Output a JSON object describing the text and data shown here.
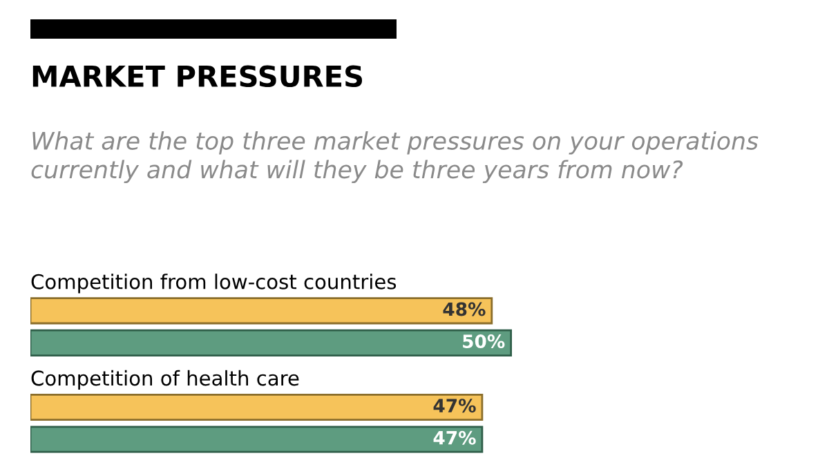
{
  "chart_data": {
    "type": "bar",
    "orientation": "horizontal",
    "title": "MARKET PRESSURES",
    "subtitle": "What are the top three market pressures on your operations currently and what will they be three years from now?",
    "categories": [
      "Competition from low-cost countries",
      "Competition of health care"
    ],
    "series": [
      {
        "color": "#f6c35a",
        "values": [
          48,
          47
        ],
        "value_labels": [
          "48%",
          "47%"
        ]
      },
      {
        "color": "#5e9c80",
        "values": [
          50,
          47
        ],
        "value_labels": [
          "50%",
          "47%"
        ]
      }
    ]
  }
}
